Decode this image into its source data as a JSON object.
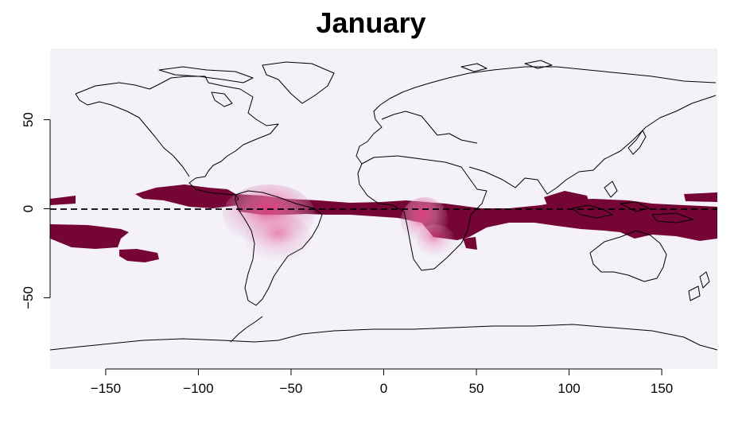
{
  "title": "January",
  "map": {
    "projection": "equirectangular",
    "x_range": [
      -180,
      180
    ],
    "y_range": [
      -90,
      90
    ],
    "x_ticks": [
      -150,
      -100,
      -50,
      0,
      50,
      100,
      150
    ],
    "y_ticks": [
      -50,
      0,
      50
    ],
    "equator_line": "dashed",
    "background_color": "#f4f1f8",
    "band_color_high": "#750534",
    "band_color_mid": "#e0407f",
    "band_color_low": "#cba6d3"
  }
}
